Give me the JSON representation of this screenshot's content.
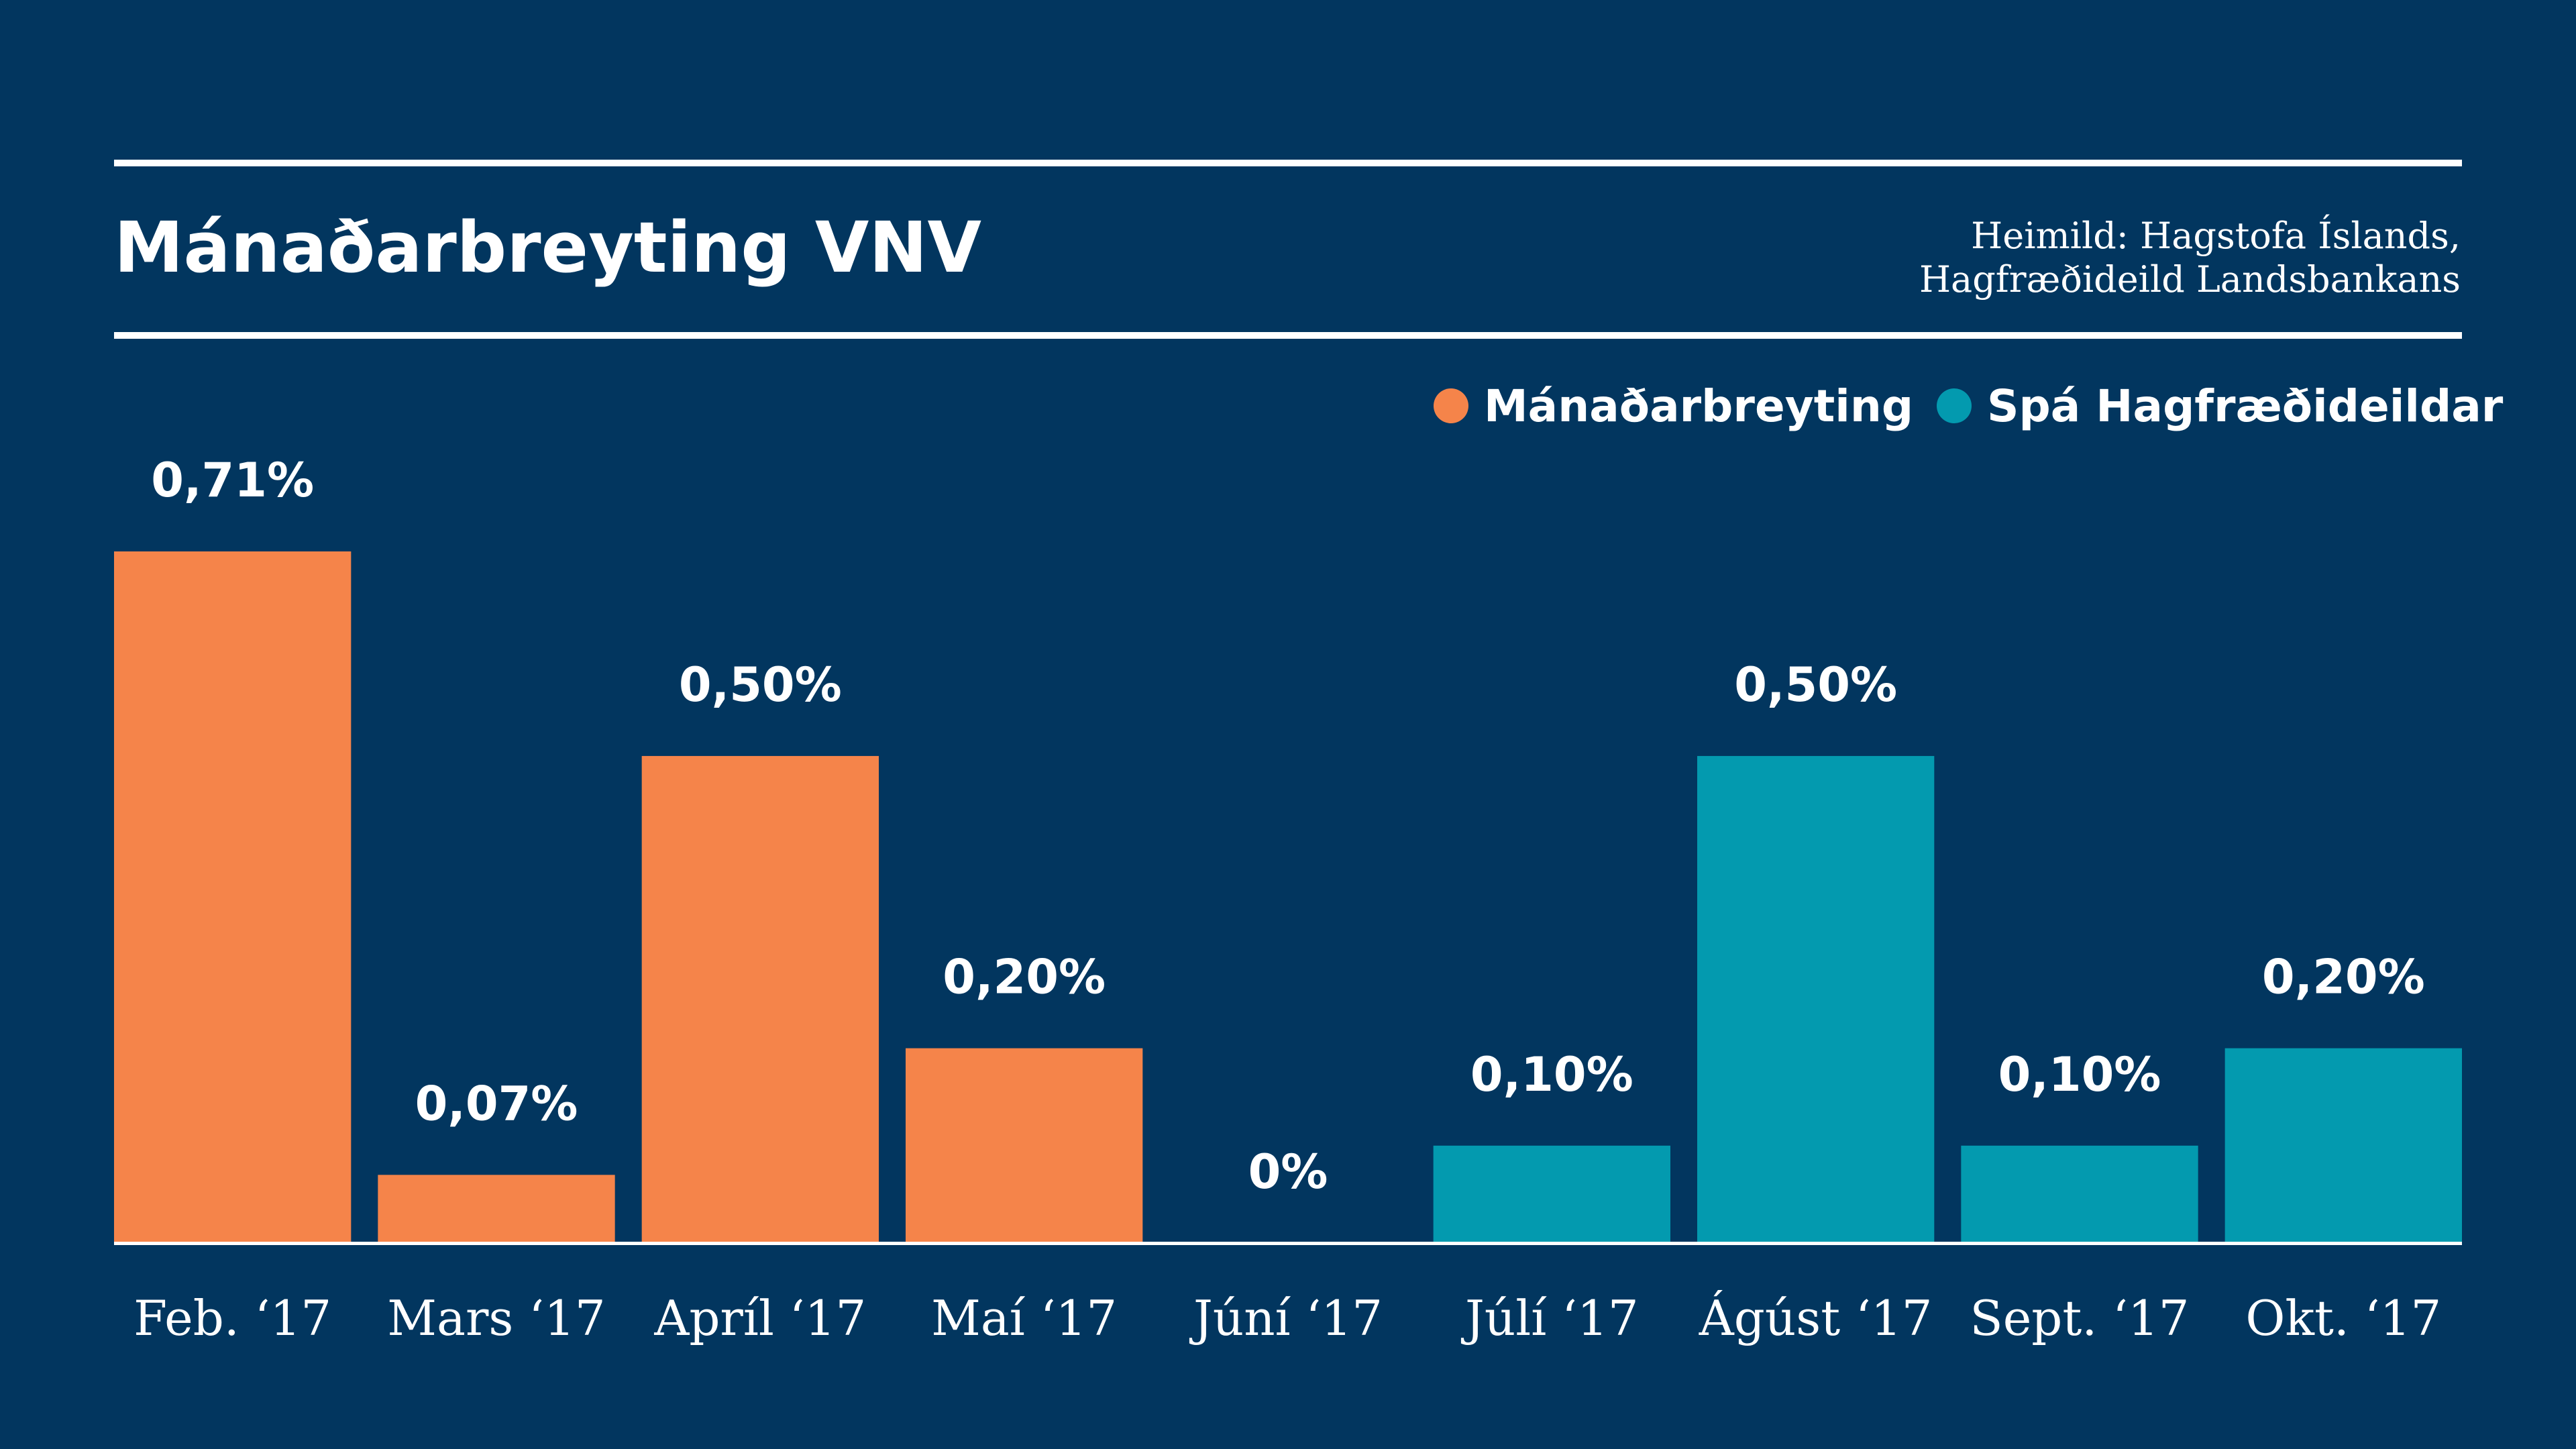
{
  "title": "Mánaðarbreyting VNV",
  "source_lines": [
    "Heimild: Hagstofa Íslands,",
    "Hagfræðideild Landsbankans"
  ],
  "colors": {
    "background": "#02365f",
    "actual": "#f5844a",
    "forecast": "#039aaf",
    "text": "#ffffff"
  },
  "chart_data": {
    "type": "bar",
    "categories": [
      "Feb. ‘17",
      "Mars ‘17",
      "Apríl ‘17",
      "Maí ‘17",
      "Júní ‘17",
      "Júlí ‘17",
      "Ágúst ‘17",
      "Sept. ‘17",
      "Okt. ‘17"
    ],
    "series": [
      {
        "name": "Mánaðarbreyting",
        "color": "#f5844a",
        "values": [
          0.71,
          0.07,
          0.5,
          0.2,
          0,
          null,
          null,
          null,
          null
        ]
      },
      {
        "name": "Spá Hagfræðideildar",
        "color": "#039aaf",
        "values": [
          null,
          null,
          null,
          null,
          null,
          0.1,
          0.5,
          0.1,
          0.2
        ]
      }
    ],
    "data_labels": [
      "0,71%",
      "0,07%",
      "0,50%",
      "0,20%",
      "0%",
      "0,10%",
      "0,50%",
      "0,10%",
      "0,20%"
    ],
    "ylim": [
      0,
      0.71
    ],
    "legend_position": "top-right",
    "grid": false
  }
}
